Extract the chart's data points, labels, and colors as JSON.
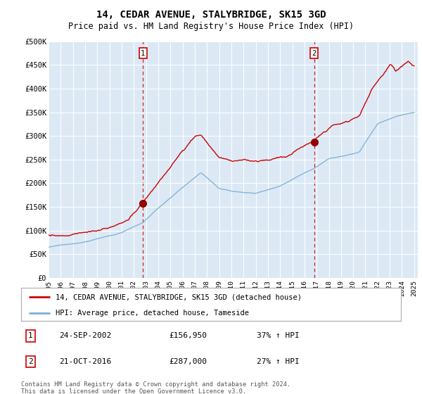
{
  "title": "14, CEDAR AVENUE, STALYBRIDGE, SK15 3GD",
  "subtitle": "Price paid vs. HM Land Registry's House Price Index (HPI)",
  "ylim": [
    0,
    500000
  ],
  "yticks": [
    0,
    50000,
    100000,
    150000,
    200000,
    250000,
    300000,
    350000,
    400000,
    450000,
    500000
  ],
  "ytick_labels": [
    "£0",
    "£50K",
    "£100K",
    "£150K",
    "£200K",
    "£250K",
    "£300K",
    "£350K",
    "£400K",
    "£450K",
    "£500K"
  ],
  "bg_color": "#dce9f5",
  "red_color": "#cc0000",
  "blue_color": "#7bafd4",
  "legend_label_red": "14, CEDAR AVENUE, STALYBRIDGE, SK15 3GD (detached house)",
  "legend_label_blue": "HPI: Average price, detached house, Tameside",
  "sale1_date": "24-SEP-2002",
  "sale1_price": "£156,950",
  "sale1_hpi": "37% ↑ HPI",
  "sale1_year": 2002.75,
  "sale1_value": 156950,
  "sale2_date": "21-OCT-2016",
  "sale2_price": "£287,000",
  "sale2_hpi": "27% ↑ HPI",
  "sale2_year": 2016.8,
  "sale2_value": 287000,
  "footer": "Contains HM Land Registry data © Crown copyright and database right 2024.\nThis data is licensed under the Open Government Licence v3.0.",
  "xtick_years": [
    1995,
    1996,
    1997,
    1998,
    1999,
    2000,
    2001,
    2002,
    2003,
    2004,
    2005,
    2006,
    2007,
    2008,
    2009,
    2010,
    2011,
    2012,
    2013,
    2014,
    2015,
    2016,
    2017,
    2018,
    2019,
    2020,
    2021,
    2022,
    2023,
    2024,
    2025
  ]
}
